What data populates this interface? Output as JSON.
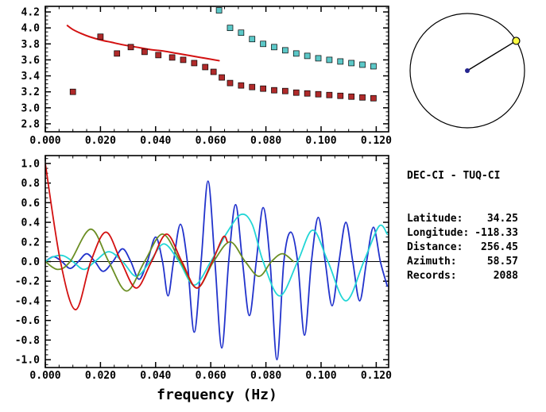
{
  "station_info": {
    "title": "DEC-CI - TUQ-CI",
    "fields": [
      {
        "label": "Latitude:",
        "value": "34.25"
      },
      {
        "label": "Longitude:",
        "value": "-118.33"
      },
      {
        "label": "Distance:",
        "value": "256.45"
      },
      {
        "label": "Azimuth:",
        "value": "58.57"
      },
      {
        "label": "Records:",
        "value": "2088"
      }
    ]
  },
  "azimuth_dial": {
    "azimuth_deg": 58.57,
    "circle_color": "#000000",
    "center_dot_color": "#24248f",
    "pointer_color": "#000000",
    "marker_fill": "#ffff44",
    "marker_stroke": "#000000"
  },
  "chart_data": [
    {
      "name": "velocity-dispersion",
      "type": "scatter",
      "title": "",
      "xlabel": "",
      "ylabel": "",
      "xlim": [
        0,
        0.1245
      ],
      "ylim": [
        2.7,
        4.27
      ],
      "xticks": [
        0,
        0.02,
        0.04,
        0.06,
        0.08,
        0.1,
        0.12
      ],
      "xtick_labels": [
        "0.000",
        "0.020",
        "0.040",
        "0.060",
        "0.080",
        "0.100",
        "0.120"
      ],
      "x_minor_step": 0.005,
      "yticks": [
        2.8,
        3.0,
        3.2,
        3.4,
        3.6,
        3.8,
        4.0,
        4.2
      ],
      "ytick_labels": [
        "2.8",
        "3.0",
        "3.2",
        "3.4",
        "3.6",
        "3.8",
        "4.0",
        "4.2"
      ],
      "y_minor_step": 0.05,
      "grid": false,
      "zero_line": false,
      "series": [
        {
          "name": "reference-curve",
          "kind": "line",
          "color": "#d31111",
          "width": 2,
          "points": [
            [
              0.008,
              4.03
            ],
            [
              0.01,
              3.98
            ],
            [
              0.013,
              3.93
            ],
            [
              0.016,
              3.89
            ],
            [
              0.02,
              3.85
            ],
            [
              0.024,
              3.82
            ],
            [
              0.028,
              3.79
            ],
            [
              0.033,
              3.76
            ],
            [
              0.038,
              3.73
            ],
            [
              0.043,
              3.71
            ],
            [
              0.048,
              3.68
            ],
            [
              0.053,
              3.65
            ],
            [
              0.058,
              3.62
            ],
            [
              0.063,
              3.59
            ]
          ]
        },
        {
          "name": "red-velocity-measurements",
          "kind": "squares",
          "color": "#b02a2a",
          "points": [
            [
              0.01,
              3.2
            ],
            [
              0.02,
              3.89
            ],
            [
              0.026,
              3.68
            ],
            [
              0.031,
              3.76
            ],
            [
              0.036,
              3.7
            ],
            [
              0.041,
              3.66
            ],
            [
              0.046,
              3.63
            ],
            [
              0.05,
              3.6
            ],
            [
              0.054,
              3.56
            ],
            [
              0.058,
              3.51
            ],
            [
              0.061,
              3.45
            ],
            [
              0.064,
              3.38
            ],
            [
              0.067,
              3.31
            ],
            [
              0.071,
              3.28
            ],
            [
              0.075,
              3.26
            ],
            [
              0.079,
              3.24
            ],
            [
              0.083,
              3.22
            ],
            [
              0.087,
              3.21
            ],
            [
              0.091,
              3.19
            ],
            [
              0.095,
              3.18
            ],
            [
              0.099,
              3.17
            ],
            [
              0.103,
              3.16
            ],
            [
              0.107,
              3.15
            ],
            [
              0.111,
              3.14
            ],
            [
              0.115,
              3.13
            ],
            [
              0.119,
              3.12
            ]
          ]
        },
        {
          "name": "cyan-velocity-measurements",
          "kind": "squares",
          "color": "#5cc8c8",
          "points": [
            [
              0.063,
              4.22
            ],
            [
              0.067,
              4.0
            ],
            [
              0.071,
              3.94
            ],
            [
              0.075,
              3.86
            ],
            [
              0.079,
              3.8
            ],
            [
              0.083,
              3.76
            ],
            [
              0.087,
              3.72
            ],
            [
              0.091,
              3.68
            ],
            [
              0.095,
              3.65
            ],
            [
              0.099,
              3.62
            ],
            [
              0.103,
              3.6
            ],
            [
              0.107,
              3.58
            ],
            [
              0.111,
              3.56
            ],
            [
              0.115,
              3.54
            ],
            [
              0.119,
              3.52
            ]
          ]
        }
      ]
    },
    {
      "name": "frequency-series",
      "type": "line",
      "title": "",
      "xlabel": "frequency (Hz)",
      "ylabel": "",
      "xlim": [
        0,
        0.1245
      ],
      "ylim": [
        -1.08,
        1.08
      ],
      "xticks": [
        0,
        0.02,
        0.04,
        0.06,
        0.08,
        0.1,
        0.12
      ],
      "xtick_labels": [
        "0.000",
        "0.020",
        "0.040",
        "0.060",
        "0.080",
        "0.100",
        "0.120"
      ],
      "x_minor_step": 0.005,
      "yticks": [
        -1.0,
        -0.8,
        -0.6,
        -0.4,
        -0.2,
        0.0,
        0.2,
        0.4,
        0.6,
        0.8,
        1.0
      ],
      "ytick_labels": [
        "-1.0",
        "-0.8",
        "-0.6",
        "-0.4",
        "-0.2",
        "0.0",
        "0.2",
        "0.4",
        "0.6",
        "0.8",
        "1.0"
      ],
      "y_minor_step": 0.05,
      "grid": false,
      "zero_line": true,
      "series": [
        {
          "name": "blue-trace",
          "kind": "line",
          "color": "#2233cc",
          "width": 1.8,
          "points": [
            [
              0.0,
              0.0
            ],
            [
              0.003,
              0.05
            ],
            [
              0.006,
              0.0
            ],
            [
              0.009,
              -0.07
            ],
            [
              0.012,
              0.0
            ],
            [
              0.015,
              0.08
            ],
            [
              0.018,
              0.0
            ],
            [
              0.021,
              -0.1
            ],
            [
              0.0245,
              0.0
            ],
            [
              0.028,
              0.13
            ],
            [
              0.031,
              0.0
            ],
            [
              0.034,
              -0.18
            ],
            [
              0.037,
              0.0
            ],
            [
              0.04,
              0.25
            ],
            [
              0.0425,
              0.0
            ],
            [
              0.0445,
              -0.35
            ],
            [
              0.0465,
              0.0
            ],
            [
              0.049,
              0.38
            ],
            [
              0.0515,
              0.0
            ],
            [
              0.054,
              -0.72
            ],
            [
              0.0565,
              0.0
            ],
            [
              0.059,
              0.82
            ],
            [
              0.0615,
              0.0
            ],
            [
              0.064,
              -0.88
            ],
            [
              0.0665,
              0.0
            ],
            [
              0.069,
              0.58
            ],
            [
              0.0715,
              0.0
            ],
            [
              0.074,
              -0.55
            ],
            [
              0.0765,
              0.0
            ],
            [
              0.079,
              0.55
            ],
            [
              0.0815,
              0.0
            ],
            [
              0.084,
              -1.0
            ],
            [
              0.0865,
              0.0
            ],
            [
              0.089,
              0.3
            ],
            [
              0.0915,
              0.0
            ],
            [
              0.094,
              -0.75
            ],
            [
              0.0965,
              0.0
            ],
            [
              0.099,
              0.45
            ],
            [
              0.1015,
              0.0
            ],
            [
              0.104,
              -0.45
            ],
            [
              0.1065,
              0.0
            ],
            [
              0.109,
              0.4
            ],
            [
              0.1115,
              0.0
            ],
            [
              0.114,
              -0.4
            ],
            [
              0.1165,
              0.0
            ],
            [
              0.119,
              0.35
            ],
            [
              0.1215,
              0.0
            ],
            [
              0.124,
              -0.25
            ]
          ]
        },
        {
          "name": "cyan-trace",
          "kind": "line",
          "color": "#22d6d6",
          "width": 1.8,
          "points": [
            [
              0.0,
              0.0
            ],
            [
              0.003,
              0.05
            ],
            [
              0.0065,
              0.06
            ],
            [
              0.01,
              0.0
            ],
            [
              0.014,
              -0.08
            ],
            [
              0.018,
              0.0
            ],
            [
              0.023,
              0.1
            ],
            [
              0.028,
              0.0
            ],
            [
              0.033,
              -0.15
            ],
            [
              0.038,
              0.0
            ],
            [
              0.043,
              0.18
            ],
            [
              0.0485,
              0.0
            ],
            [
              0.054,
              -0.24
            ],
            [
              0.06,
              0.0
            ],
            [
              0.066,
              0.3
            ],
            [
              0.071,
              0.48
            ],
            [
              0.075,
              0.38
            ],
            [
              0.079,
              0.0
            ],
            [
              0.085,
              -0.35
            ],
            [
              0.0915,
              0.0
            ],
            [
              0.097,
              0.32
            ],
            [
              0.1025,
              0.0
            ],
            [
              0.109,
              -0.4
            ],
            [
              0.1155,
              0.0
            ],
            [
              0.121,
              0.36
            ],
            [
              0.124,
              0.28
            ]
          ]
        },
        {
          "name": "green-trace",
          "kind": "line",
          "color": "#6b8e23",
          "width": 1.8,
          "points": [
            [
              0.0,
              0.0
            ],
            [
              0.0045,
              -0.08
            ],
            [
              0.009,
              0.0
            ],
            [
              0.0165,
              0.33
            ],
            [
              0.023,
              0.0
            ],
            [
              0.0295,
              -0.3
            ],
            [
              0.036,
              0.0
            ],
            [
              0.0425,
              0.28
            ],
            [
              0.049,
              0.0
            ],
            [
              0.055,
              -0.27
            ],
            [
              0.061,
              0.0
            ],
            [
              0.067,
              0.2
            ],
            [
              0.0725,
              0.0
            ],
            [
              0.0775,
              -0.15
            ],
            [
              0.082,
              0.0
            ],
            [
              0.086,
              0.08
            ],
            [
              0.09,
              0.0
            ]
          ]
        },
        {
          "name": "red-trace",
          "kind": "line",
          "color": "#d31111",
          "width": 1.8,
          "points": [
            [
              0.0,
              1.0
            ],
            [
              0.0055,
              0.0
            ],
            [
              0.011,
              -0.49
            ],
            [
              0.0165,
              0.0
            ],
            [
              0.022,
              0.3
            ],
            [
              0.0275,
              0.0
            ],
            [
              0.033,
              -0.27
            ],
            [
              0.0385,
              0.0
            ],
            [
              0.044,
              0.28
            ],
            [
              0.0495,
              0.0
            ],
            [
              0.055,
              -0.27
            ],
            [
              0.0605,
              0.0
            ],
            [
              0.0645,
              0.25
            ],
            [
              0.066,
              0.2
            ]
          ]
        }
      ]
    }
  ]
}
